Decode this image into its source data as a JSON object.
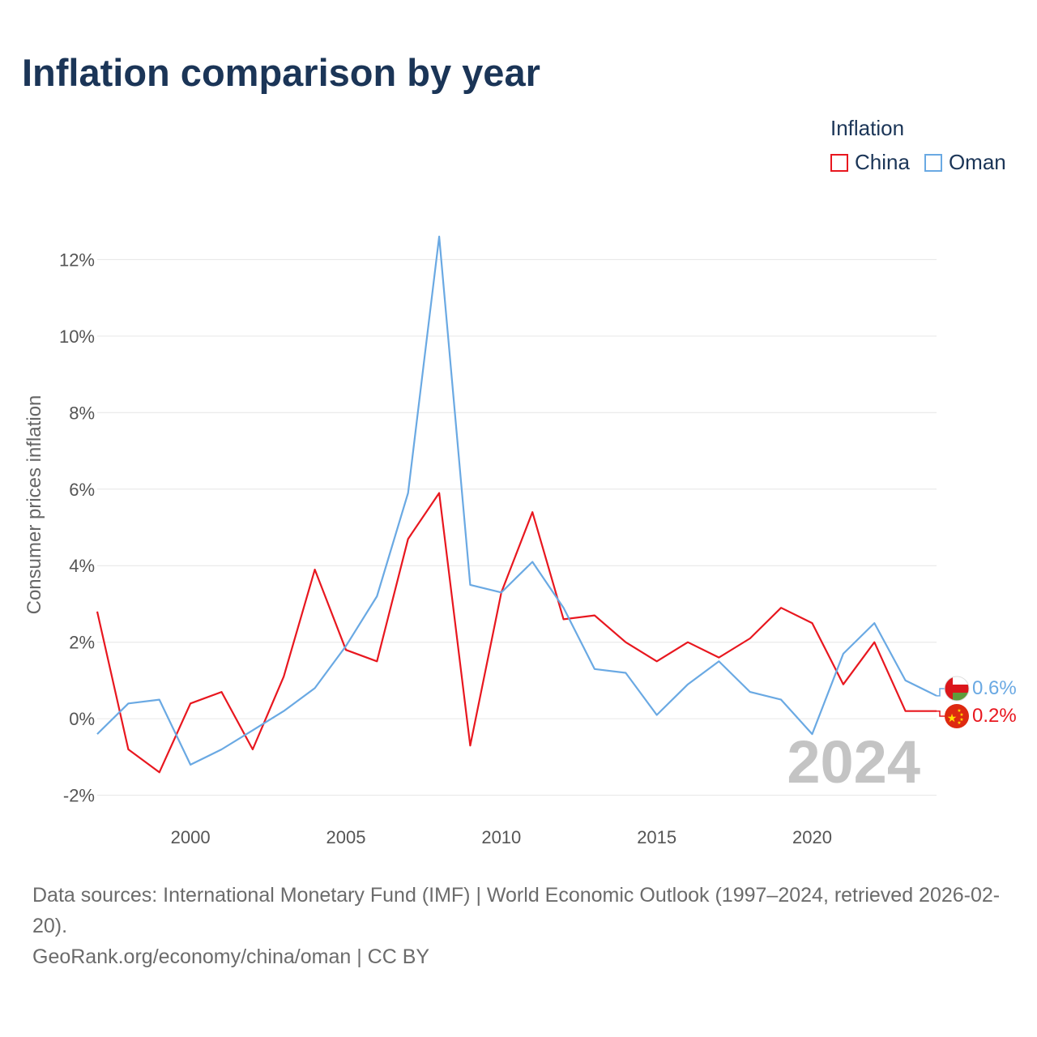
{
  "title": "Inflation comparison by year",
  "legend": {
    "title": "Inflation",
    "items": [
      {
        "name": "China",
        "color": "#e8171f"
      },
      {
        "name": "Oman",
        "color": "#6aa9e3"
      }
    ]
  },
  "chart_data": {
    "type": "line",
    "title": "Inflation comparison by year",
    "xlabel": "",
    "ylabel": "Consumer prices inflation",
    "xlim": [
      1997,
      2024
    ],
    "ylim": [
      -2.6,
      12.6
    ],
    "x_ticks": [
      2000,
      2005,
      2010,
      2015,
      2020
    ],
    "y_ticks": [
      -2,
      0,
      2,
      4,
      6,
      8,
      10,
      12
    ],
    "y_tick_labels": [
      "-2%",
      "0%",
      "2%",
      "4%",
      "6%",
      "8%",
      "10%",
      "12%"
    ],
    "grid": true,
    "x": [
      1997,
      1998,
      1999,
      2000,
      2001,
      2002,
      2003,
      2004,
      2005,
      2006,
      2007,
      2008,
      2009,
      2010,
      2011,
      2012,
      2013,
      2014,
      2015,
      2016,
      2017,
      2018,
      2019,
      2020,
      2021,
      2022,
      2023,
      2024
    ],
    "series": [
      {
        "name": "China",
        "color": "#e8171f",
        "end_label": "0.2%",
        "values": [
          2.8,
          -0.8,
          -1.4,
          0.4,
          0.7,
          -0.8,
          1.1,
          3.9,
          1.8,
          1.5,
          4.7,
          5.9,
          -0.7,
          3.3,
          5.4,
          2.6,
          2.7,
          2.0,
          1.5,
          2.0,
          1.6,
          2.1,
          2.9,
          2.5,
          0.9,
          2.0,
          0.2,
          0.2
        ]
      },
      {
        "name": "Oman",
        "color": "#6aa9e3",
        "end_label": "0.6%",
        "values": [
          -0.4,
          0.4,
          0.5,
          -1.2,
          -0.8,
          -0.3,
          0.2,
          0.8,
          1.9,
          3.2,
          5.9,
          12.6,
          3.5,
          3.3,
          4.1,
          2.9,
          1.3,
          1.2,
          0.1,
          0.9,
          1.5,
          0.7,
          0.5,
          -0.4,
          1.7,
          2.5,
          1.0,
          0.6
        ]
      }
    ],
    "annotation_year": "2024"
  },
  "source": {
    "line1": "Data sources: International Monetary Fund (IMF) | World Economic Outlook (1997–2024, retrieved 2026-02-20).",
    "line2": "GeoRank.org/economy/china/oman | CC BY"
  }
}
